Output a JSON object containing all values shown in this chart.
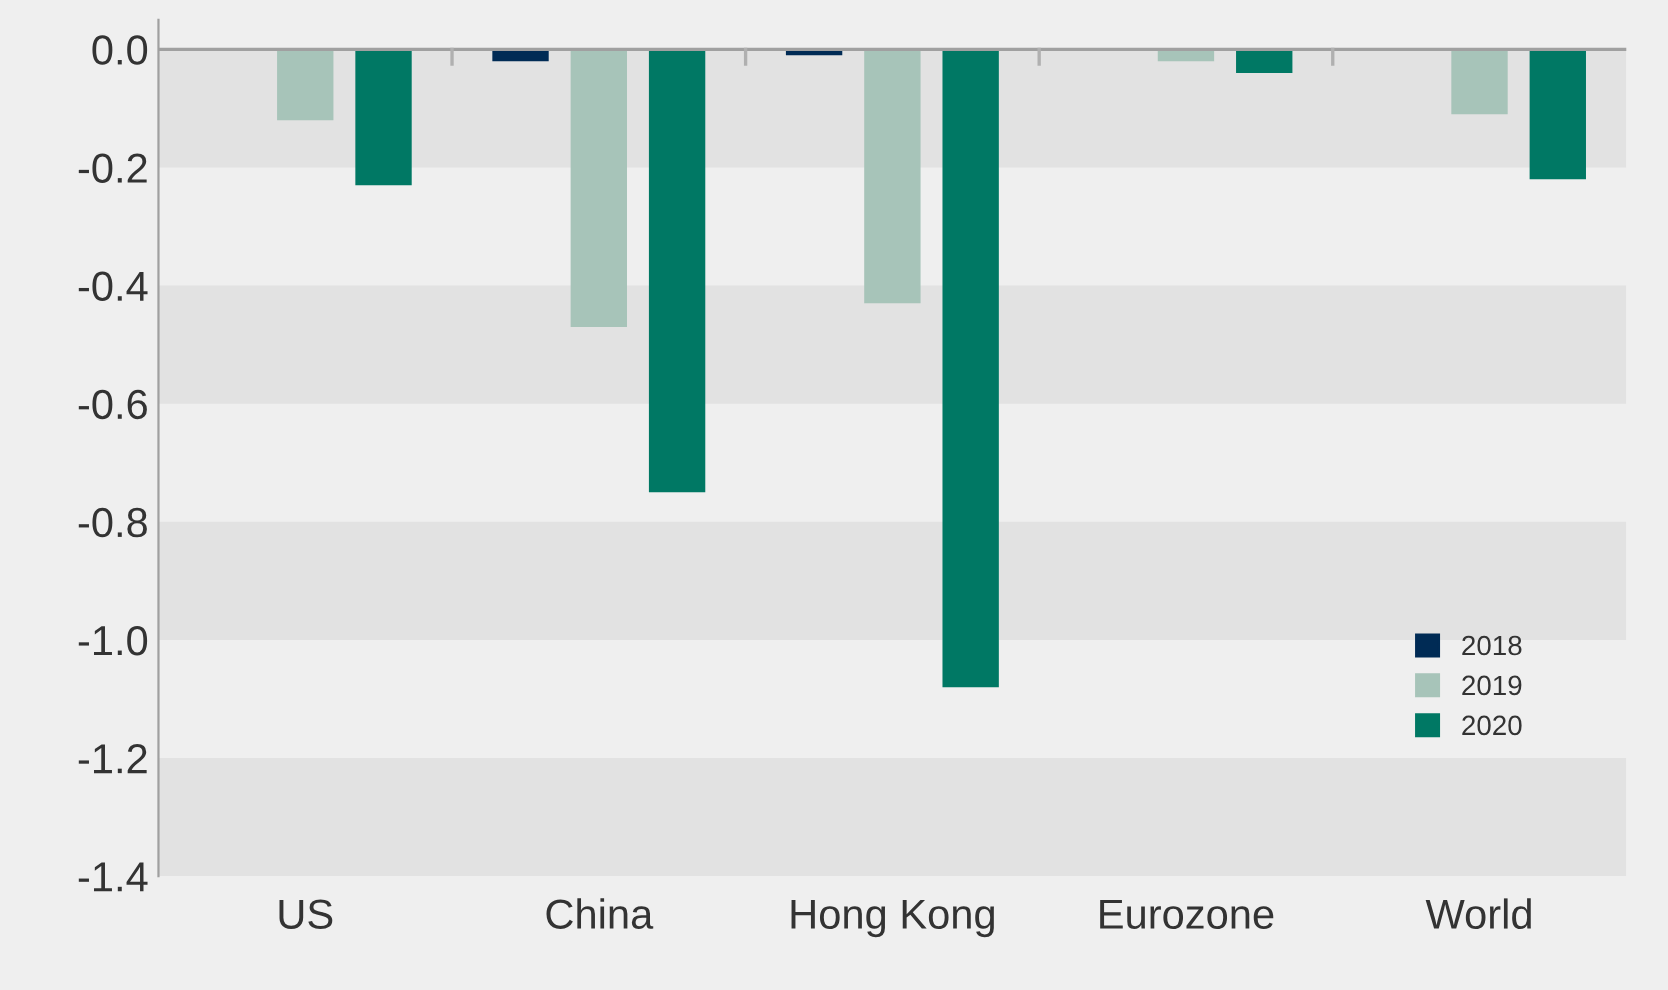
{
  "chart_data": {
    "type": "bar",
    "categories": [
      "US",
      "China",
      "Hong Kong",
      "Eurozone",
      "World"
    ],
    "series": [
      {
        "name": "2018",
        "color": "#002b55",
        "values": [
          0,
          -0.02,
          -0.01,
          0,
          0
        ]
      },
      {
        "name": "2019",
        "color": "#a7c4b9",
        "values": [
          -0.12,
          -0.47,
          -0.43,
          -0.02,
          -0.11
        ]
      },
      {
        "name": "2020",
        "color": "#007864",
        "values": [
          -0.23,
          -0.75,
          -1.08,
          -0.04,
          -0.22
        ]
      }
    ],
    "ylim": [
      -1.4,
      0.05
    ],
    "yticks": [
      {
        "value": 0,
        "label": "0.0"
      },
      -0.2,
      -0.4,
      -0.6,
      -0.8,
      {
        "value": -1,
        "label": "-1.0"
      },
      -1.2,
      -1.4
    ],
    "grid": "y",
    "legend": "bottom right"
  }
}
